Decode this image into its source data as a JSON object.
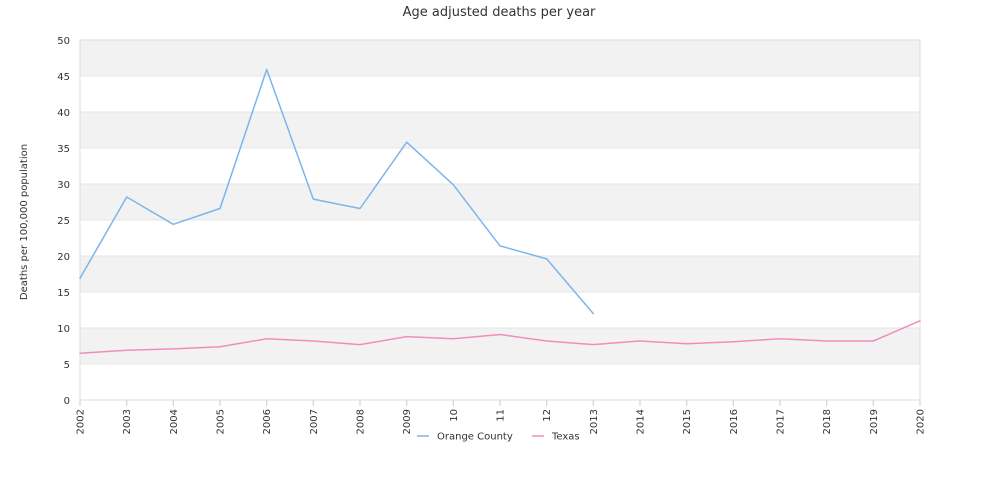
{
  "chart_data": {
    "type": "line",
    "title": "Age adjusted deaths per year",
    "xlabel": "",
    "ylabel": "Deaths per 100,000 population",
    "x": [
      "2002",
      "2003",
      "2004",
      "2005",
      "2006",
      "2007",
      "2008",
      "2009",
      "2010",
      "2011",
      "2012",
      "2013",
      "2014",
      "2015",
      "2016",
      "2017",
      "2018",
      "2019",
      "2020"
    ],
    "x_tick_labels": [
      "2002",
      "2003",
      "2004",
      "2005",
      "2006",
      "2007",
      "2008",
      "2009",
      "10",
      "11",
      "12",
      "2013",
      "2014",
      "2015",
      "2016",
      "2017",
      "2018",
      "2019",
      "2020"
    ],
    "ylim": [
      0,
      50
    ],
    "yticks": [
      0,
      5,
      10,
      15,
      20,
      25,
      30,
      35,
      40,
      45,
      50
    ],
    "grid": "banded-horizontal",
    "legend_position": "bottom-center",
    "series": [
      {
        "name": "Orange County",
        "color": "#7cb5ec",
        "values": [
          16.9,
          28.2,
          24.4,
          26.6,
          45.9,
          27.9,
          26.6,
          35.8,
          29.9,
          21.4,
          19.6,
          12.0,
          null,
          null,
          null,
          null,
          null,
          null,
          null
        ]
      },
      {
        "name": "Texas",
        "color": "#f28cbf",
        "values": [
          6.5,
          6.9,
          7.1,
          7.4,
          8.5,
          8.2,
          7.7,
          8.8,
          8.5,
          9.1,
          8.2,
          7.7,
          8.2,
          7.8,
          8.1,
          8.5,
          8.2,
          8.2,
          11.0
        ]
      }
    ]
  }
}
